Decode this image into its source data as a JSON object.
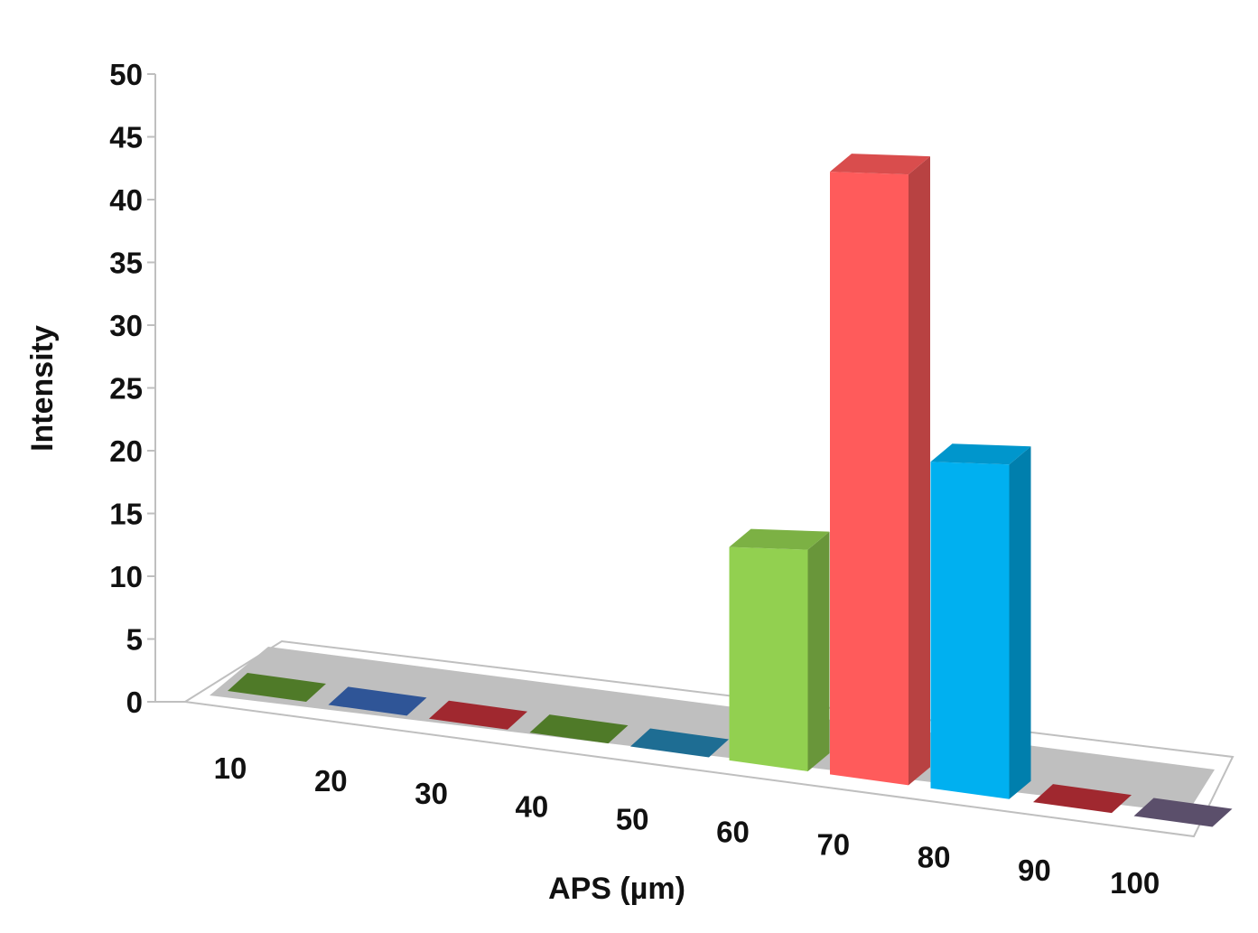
{
  "chart_data": {
    "type": "bar",
    "title": "",
    "xlabel": "APS (µm)",
    "ylabel": "Intensity",
    "ylim": [
      0,
      50
    ],
    "yticks": [
      0,
      5,
      10,
      15,
      20,
      25,
      30,
      35,
      40,
      45,
      50
    ],
    "categories": [
      "10",
      "20",
      "30",
      "40",
      "50",
      "60",
      "70",
      "80",
      "90",
      "100"
    ],
    "values": [
      0,
      0,
      0,
      0,
      0,
      17,
      48,
      26,
      0,
      0
    ],
    "colors": [
      "#4f7a28",
      "#2f5597",
      "#a0282f",
      "#4f7a28",
      "#1e6d93",
      "#92d050",
      "#ff5b5b",
      "#00b0f0",
      "#a0282f",
      "#5b4f6b"
    ],
    "grid": false,
    "legend": "none",
    "style": "3d-column"
  }
}
